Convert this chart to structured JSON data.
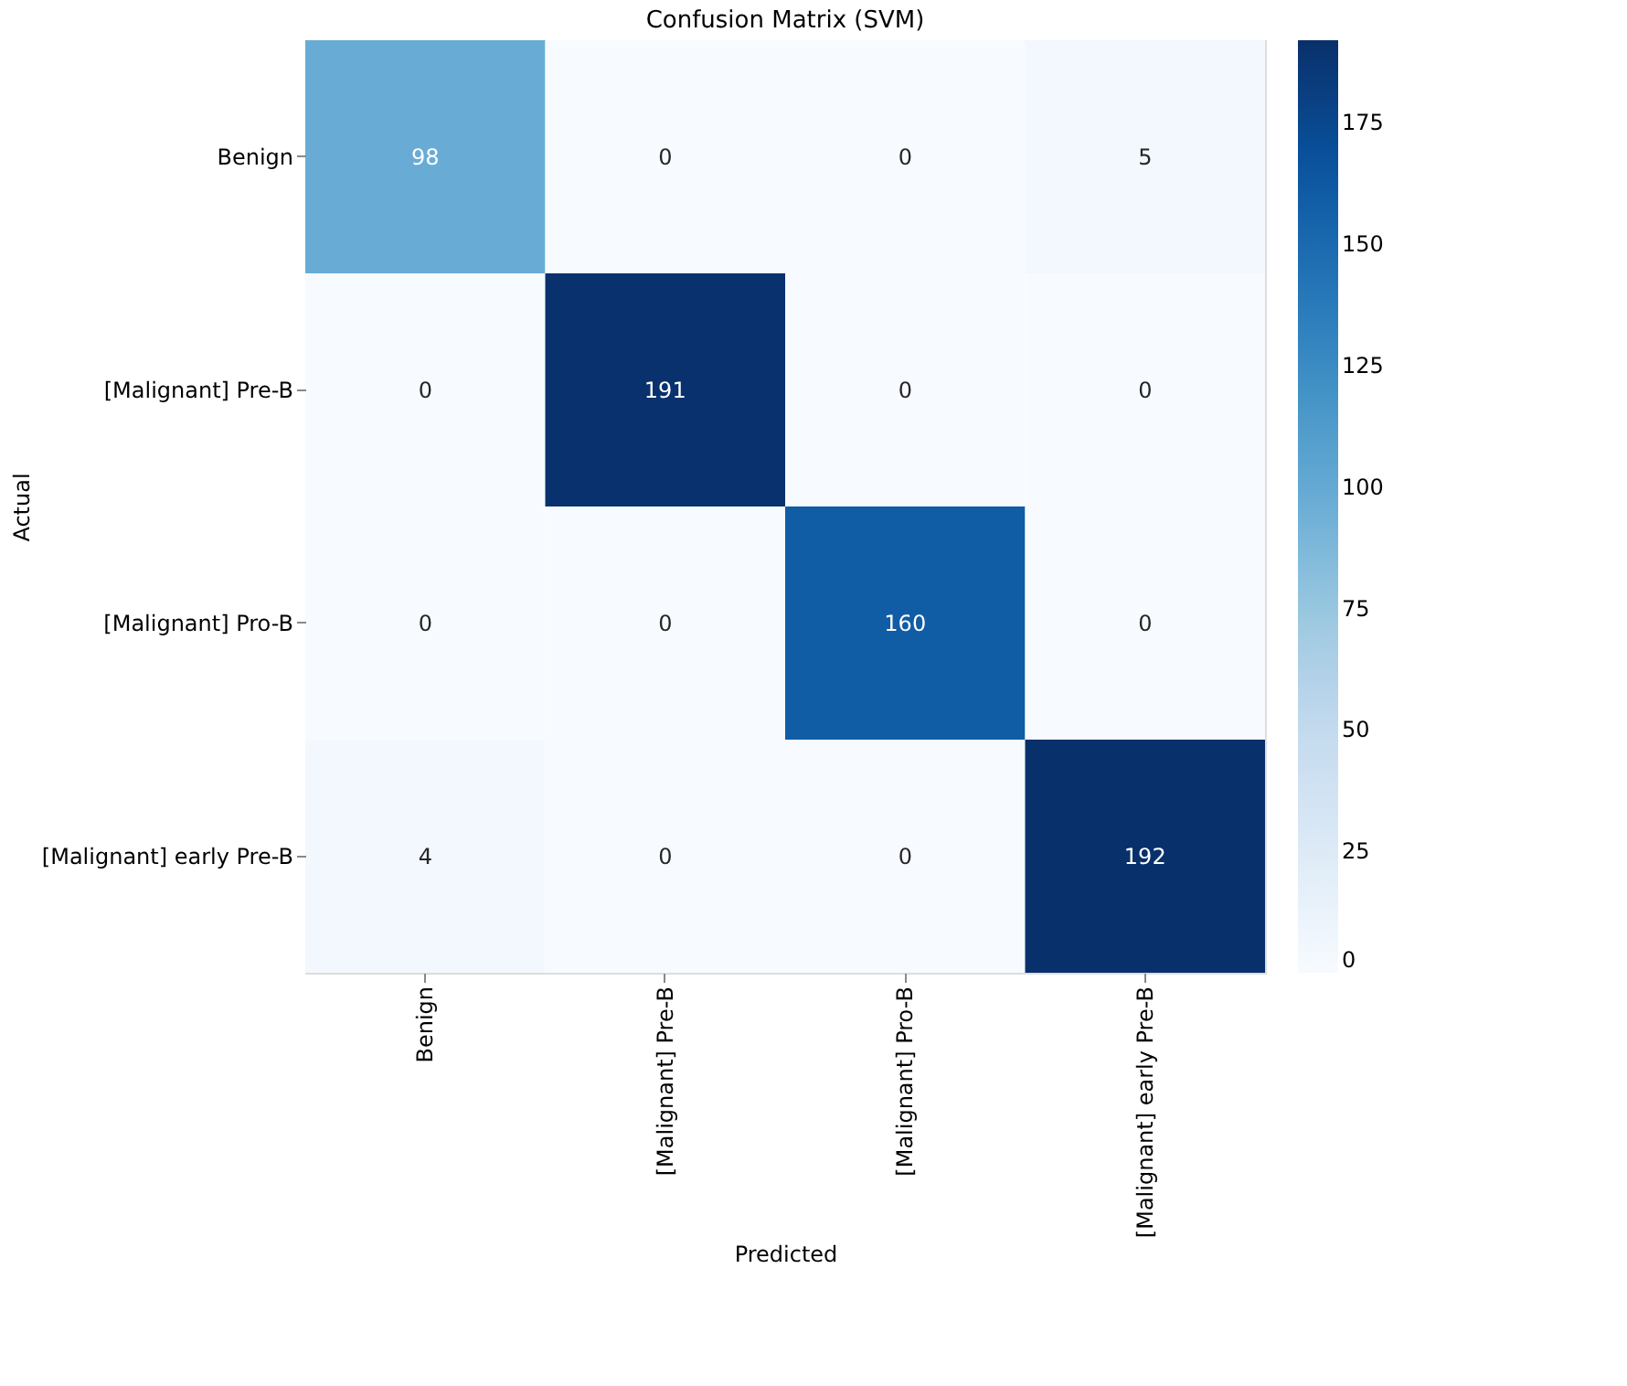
{
  "chart_data": {
    "type": "heatmap",
    "title": "Confusion Matrix (SVM)",
    "xlabel": "Predicted",
    "ylabel": "Actual",
    "categories": [
      "Benign",
      "[Malignant] Pre-B",
      "[Malignant] Pro-B",
      "[Malignant] early Pre-B"
    ],
    "y_categories": [
      "Benign",
      "[Malignant] Pre-B",
      "[Malignant] Pro-B",
      "[Malignant] early Pre-B"
    ],
    "cells": [
      [
        98,
        0,
        0,
        5
      ],
      [
        0,
        191,
        0,
        0
      ],
      [
        0,
        0,
        160,
        0
      ],
      [
        4,
        0,
        0,
        192
      ]
    ],
    "clim": [
      0,
      192
    ],
    "cticks": [
      0,
      25,
      50,
      75,
      100,
      125,
      150,
      175
    ],
    "data_labels": true
  }
}
